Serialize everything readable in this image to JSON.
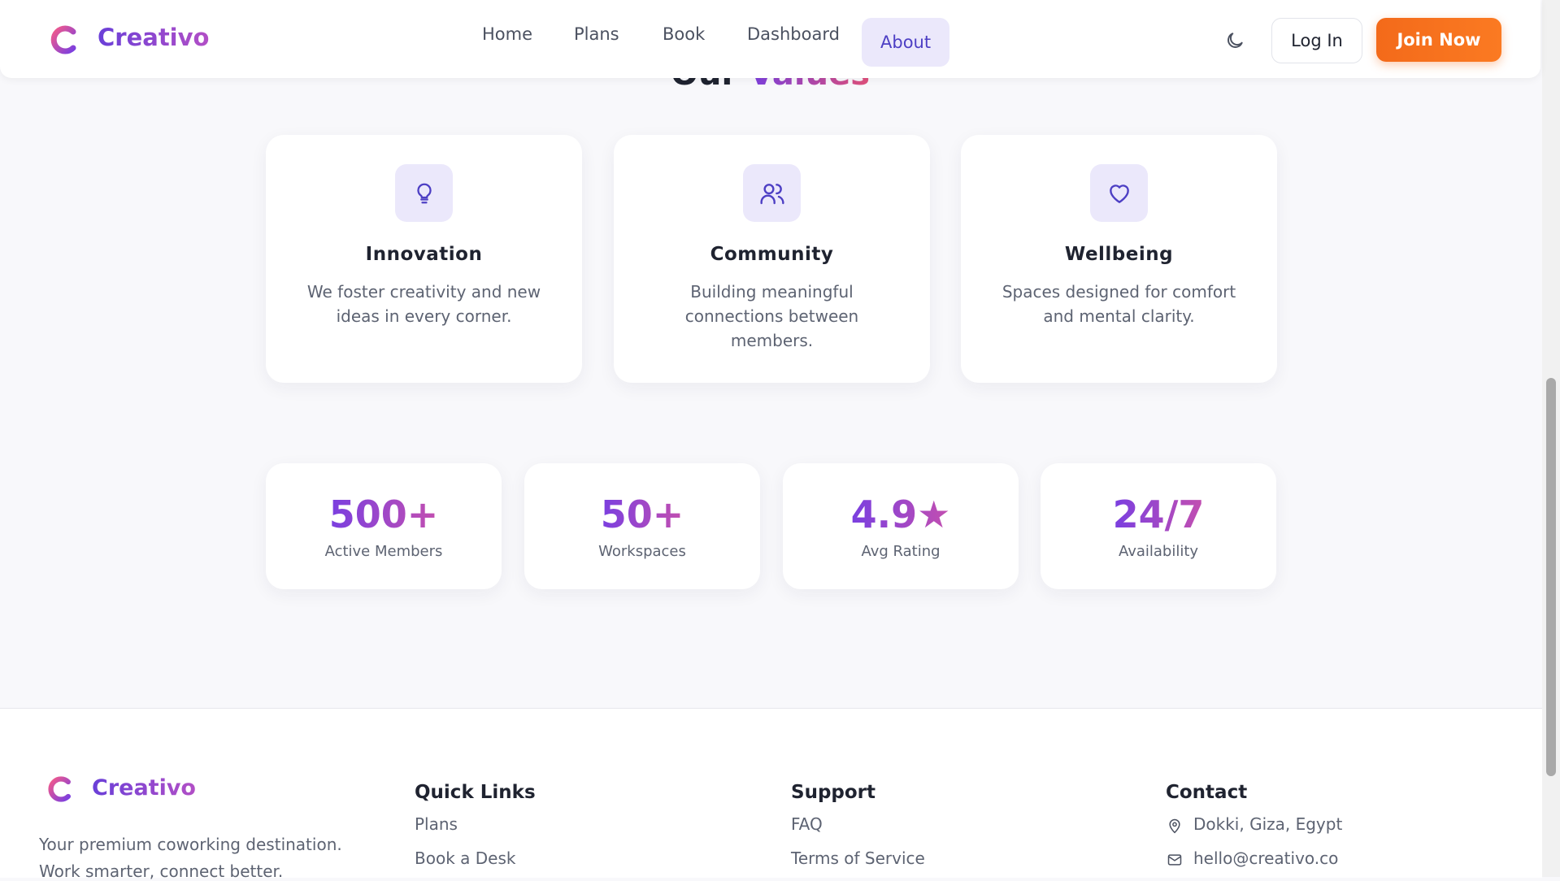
{
  "nav": {
    "brand": "Creativo",
    "links": [
      "Home",
      "Plans",
      "Book",
      "Dashboard",
      "About"
    ],
    "login": "Log In",
    "join": "Join Now"
  },
  "section": {
    "title_plain": "Our",
    "title_accent": "Values"
  },
  "values": [
    {
      "title": "Innovation",
      "text": "We foster creativity and new ideas in every corner."
    },
    {
      "title": "Community",
      "text": "Building meaningful connections between members."
    },
    {
      "title": "Wellbeing",
      "text": "Spaces designed for comfort and mental clarity."
    }
  ],
  "stats": [
    {
      "value": "500+",
      "label": "Active Members"
    },
    {
      "value": "50+",
      "label": "Workspaces"
    },
    {
      "value": "4.9★",
      "label": "Avg Rating"
    },
    {
      "value": "24/7",
      "label": "Availability"
    }
  ],
  "footer": {
    "brand": "Creativo",
    "tagline": [
      "Your premium coworking destination.",
      "Work smarter, connect better."
    ],
    "columns": [
      {
        "title": "Quick Links",
        "items": [
          "Plans",
          "Book a Desk"
        ]
      },
      {
        "title": "Support",
        "items": [
          "FAQ",
          "Terms of Service"
        ]
      },
      {
        "title": "Contact",
        "items": [
          "Dokki, Giza, Egypt",
          "hello@creativo.co"
        ]
      }
    ]
  }
}
